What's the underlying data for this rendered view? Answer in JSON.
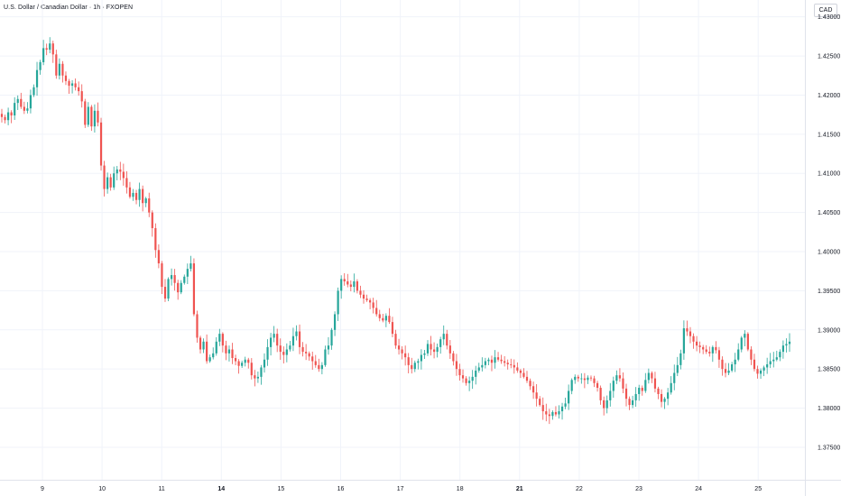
{
  "header": {
    "symbol_title": "U.S. Dollar / Canadian Dollar · 1h · FXOPEN",
    "currency": "CAD"
  },
  "colors": {
    "up": "#26a69a",
    "down": "#ef5350",
    "grid": "#f0f3fa",
    "axis_text": "#131722"
  },
  "chart_data": {
    "type": "candlestick",
    "ylim": [
      1.372,
      1.431
    ],
    "yticks": [
      "1.43000",
      "1.42500",
      "1.42000",
      "1.41500",
      "1.41000",
      "1.40500",
      "1.40000",
      "1.39500",
      "1.39000",
      "1.38500",
      "1.38000",
      "1.37500"
    ],
    "xticks": [
      "9",
      "10",
      "11",
      "14",
      "15",
      "16",
      "17",
      "18",
      "21",
      "22",
      "23",
      "24",
      "25"
    ],
    "bold_xticks": [
      "14",
      "21"
    ],
    "closes": [
      1.4172,
      1.4168,
      1.4178,
      1.4174,
      1.419,
      1.4195,
      1.4185,
      1.418,
      1.4183,
      1.42,
      1.421,
      1.4232,
      1.4242,
      1.426,
      1.4258,
      1.4266,
      1.4252,
      1.4225,
      1.424,
      1.4225,
      1.4218,
      1.4212,
      1.4215,
      1.421,
      1.4205,
      1.4192,
      1.4162,
      1.4185,
      1.416,
      1.418,
      1.4165,
      1.411,
      1.408,
      1.4095,
      1.4082,
      1.41,
      1.4105,
      1.4102,
      1.4094,
      1.4082,
      1.407,
      1.4075,
      1.4066,
      1.408,
      1.4062,
      1.4068,
      1.405,
      1.403,
      1.4002,
      1.3985,
      1.3955,
      1.394,
      1.3965,
      1.397,
      1.396,
      1.3948,
      1.396,
      1.3968,
      1.3978,
      1.3985,
      1.392,
      1.389,
      1.3875,
      1.3885,
      1.386,
      1.3865,
      1.387,
      1.3885,
      1.3895,
      1.388,
      1.387,
      1.3875,
      1.3864,
      1.386,
      1.3854,
      1.3858,
      1.3862,
      1.3858,
      1.3842,
      1.3838,
      1.384,
      1.3852,
      1.3862,
      1.3878,
      1.389,
      1.3895,
      1.388,
      1.3872,
      1.3868,
      1.3875,
      1.388,
      1.3892,
      1.3898,
      1.3878,
      1.3872,
      1.387,
      1.3866,
      1.386,
      1.3855,
      1.385,
      1.3855,
      1.3875,
      1.388,
      1.39,
      1.392,
      1.395,
      1.3965,
      1.3962,
      1.3958,
      1.3955,
      1.3962,
      1.395,
      1.3945,
      1.394,
      1.3938,
      1.3935,
      1.3928,
      1.392,
      1.3915,
      1.3912,
      1.3918,
      1.391,
      1.3895,
      1.388,
      1.3875,
      1.387,
      1.3865,
      1.3855,
      1.385,
      1.3858,
      1.386,
      1.3868,
      1.387,
      1.3882,
      1.3875,
      1.3872,
      1.3878,
      1.3888,
      1.3895,
      1.388,
      1.387,
      1.386,
      1.385,
      1.3842,
      1.3838,
      1.3832,
      1.3835,
      1.384,
      1.3848,
      1.3852,
      1.3855,
      1.386,
      1.3862,
      1.3858,
      1.3865,
      1.3862,
      1.386,
      1.3858,
      1.3856,
      1.3855,
      1.3852,
      1.3848,
      1.3845,
      1.384,
      1.3835,
      1.3828,
      1.382,
      1.3812,
      1.3804,
      1.3796,
      1.3792,
      1.379,
      1.3795,
      1.3792,
      1.3796,
      1.3802,
      1.3806,
      1.3822,
      1.3836,
      1.384,
      1.3838,
      1.3838,
      1.3836,
      1.3839,
      1.3838,
      1.3832,
      1.3826,
      1.381,
      1.38,
      1.381,
      1.3822,
      1.3835,
      1.3842,
      1.3838,
      1.3825,
      1.3812,
      1.3804,
      1.381,
      1.3818,
      1.3826,
      1.3822,
      1.3836,
      1.3845,
      1.3838,
      1.3825,
      1.3818,
      1.3808,
      1.3812,
      1.382,
      1.3832,
      1.3845,
      1.3855,
      1.387,
      1.3902,
      1.3898,
      1.3892,
      1.3885,
      1.388,
      1.3878,
      1.3875,
      1.3872,
      1.387,
      1.3878,
      1.3874,
      1.3862,
      1.385,
      1.3845,
      1.3848,
      1.3856,
      1.3862,
      1.3875,
      1.389,
      1.3895,
      1.3875,
      1.3862,
      1.385,
      1.3844,
      1.3848,
      1.3852,
      1.3856,
      1.386,
      1.3862,
      1.3865,
      1.3872,
      1.388,
      1.3882,
      1.3885
    ]
  }
}
